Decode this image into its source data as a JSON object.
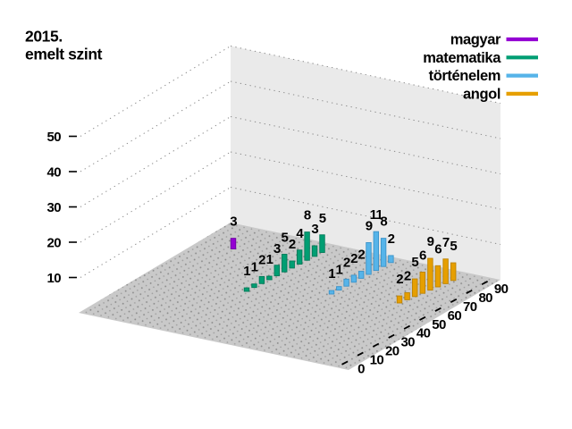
{
  "title": {
    "line1": "2015.",
    "line2": "emelt szint"
  },
  "legend": {
    "position": "top-right",
    "items": [
      {
        "label": "magyar",
        "color": "#9400d3"
      },
      {
        "label": "matematika",
        "color": "#009e73"
      },
      {
        "label": "történelem",
        "color": "#56b4e9"
      },
      {
        "label": "angol",
        "color": "#e69f00"
      }
    ]
  },
  "chart_data": {
    "type": "bar",
    "projection": "3d",
    "title": "2015. emelt szint",
    "grid": true,
    "legend_position": "top-right",
    "z_axis": {
      "ticks": [
        10,
        20,
        30,
        40,
        50
      ]
    },
    "x_axis": {
      "ticks": [
        0,
        10,
        20,
        30,
        40,
        50,
        60,
        70,
        80,
        90
      ]
    },
    "series": [
      {
        "name": "magyar",
        "color": "#9400d3",
        "values": [
          3
        ]
      },
      {
        "name": "matematika",
        "color": "#009e73",
        "values": [
          1,
          1,
          2,
          1,
          3,
          5,
          2,
          4,
          8,
          3,
          5
        ]
      },
      {
        "name": "történelem",
        "color": "#56b4e9",
        "values": [
          1,
          1,
          2,
          2,
          2,
          9,
          11,
          8,
          2
        ]
      },
      {
        "name": "angol",
        "color": "#e69f00",
        "values": [
          2,
          2,
          5,
          6,
          9,
          6,
          7,
          5
        ]
      }
    ]
  }
}
